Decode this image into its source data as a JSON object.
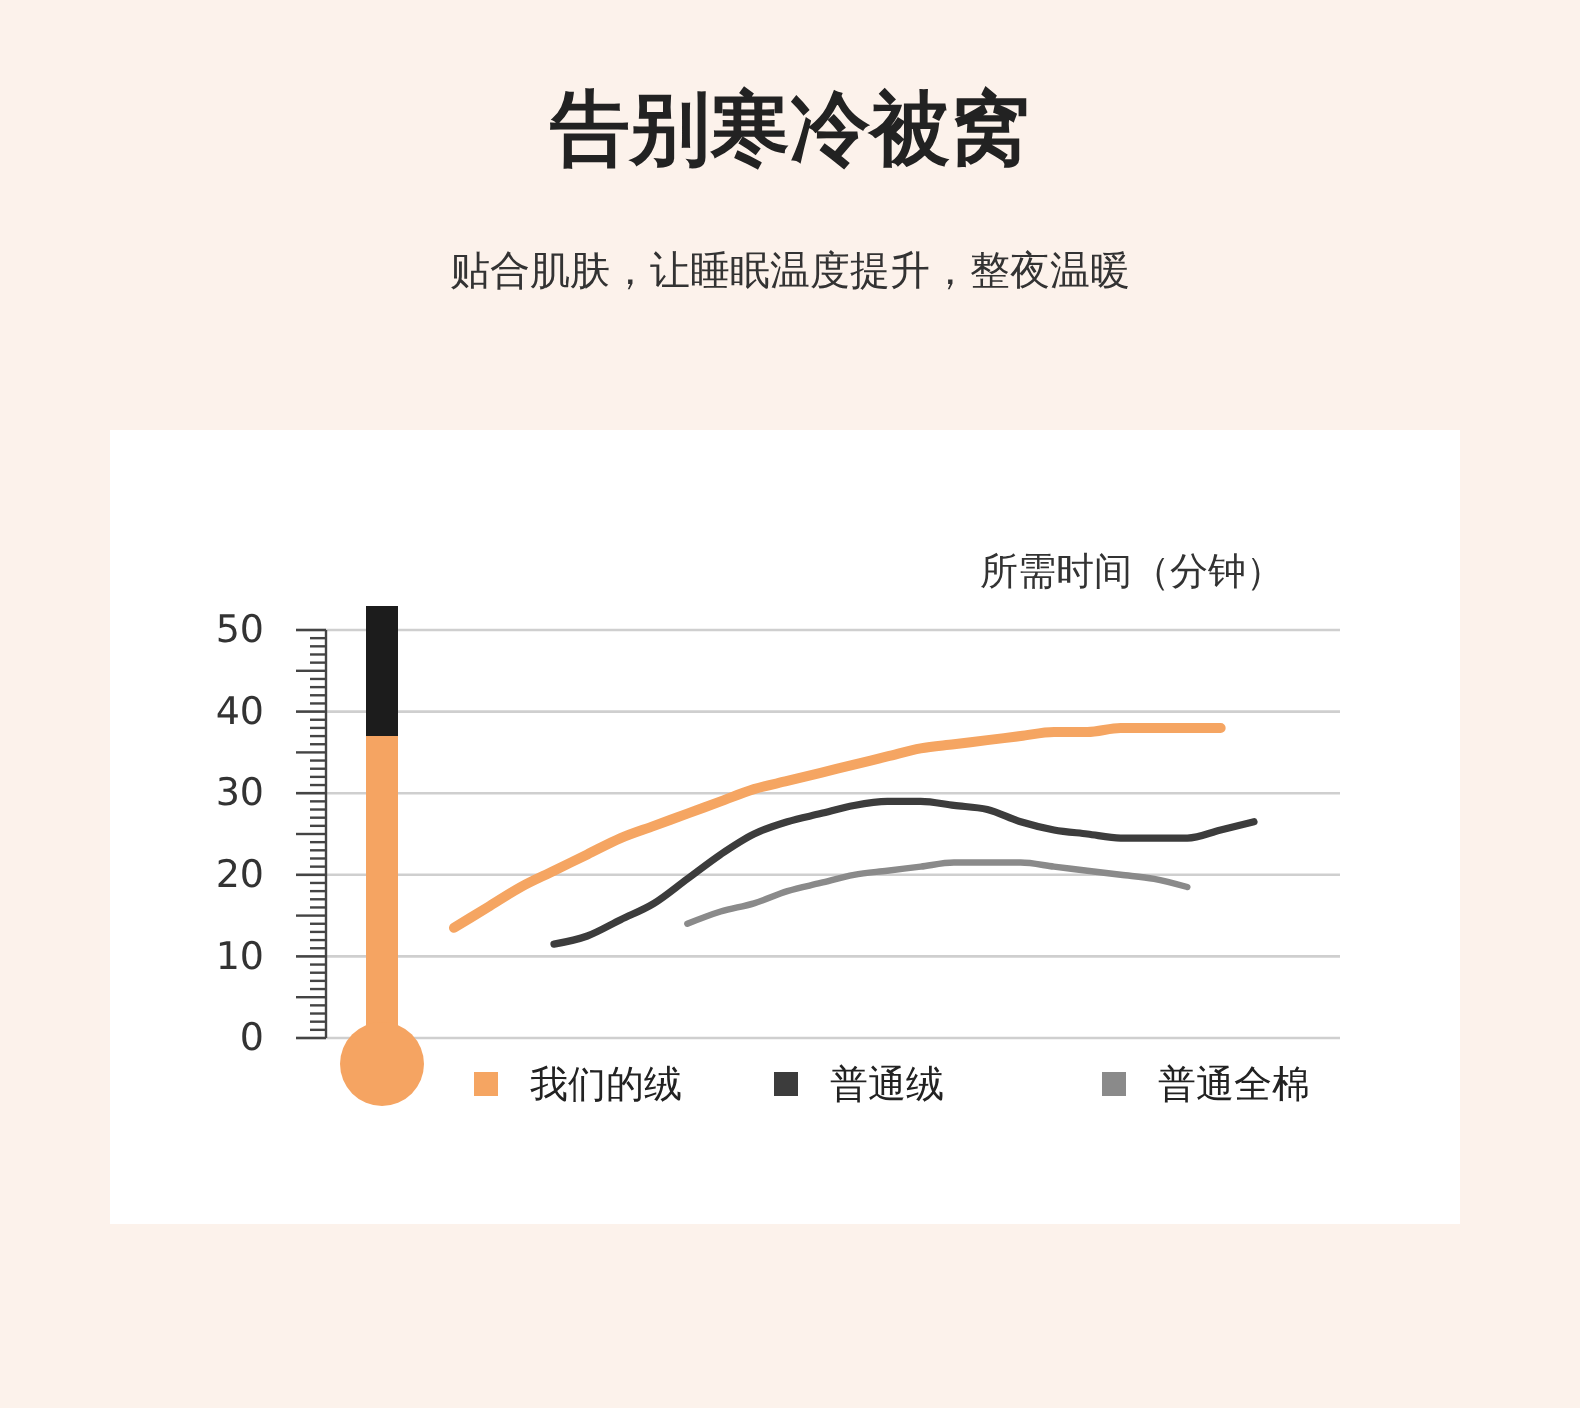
{
  "chart_data": {
    "type": "line",
    "title": "告别寒冷被窝",
    "subtitle": "贴合肌肤，让睡眠温度提升，整夜温暖",
    "ylabel": "所需时间（分钟）",
    "categories": [
      null,
      null,
      null,
      null,
      null,
      null,
      null,
      null,
      null,
      null,
      null,
      null,
      null,
      null,
      null,
      null,
      null,
      null,
      null,
      null,
      null,
      null,
      null,
      null,
      null
    ],
    "series": [
      {
        "name": "我们的绒",
        "color": "#f5a562",
        "values": [
          13.5,
          16,
          18.5,
          20.5,
          22.5,
          24.5,
          26,
          27.5,
          29,
          30.5,
          31.5,
          32.5,
          33.5,
          34.5,
          35.5,
          36,
          36.5,
          37,
          37.5,
          37.5,
          38,
          38,
          38,
          38,
          null
        ]
      },
      {
        "name": "普通绒",
        "color": "#3c3c3c",
        "values": [
          null,
          null,
          null,
          11.5,
          12.5,
          14.5,
          16.5,
          19.5,
          22.5,
          25,
          26.5,
          27.5,
          28.5,
          29,
          29,
          28.5,
          28,
          26.5,
          25.5,
          25,
          24.5,
          24.5,
          24.5,
          25.5,
          26.5
        ]
      },
      {
        "name": "普通全棉",
        "color": "#8a8a8a",
        "values": [
          null,
          null,
          null,
          null,
          null,
          null,
          null,
          14,
          15.5,
          16.5,
          18,
          19,
          20,
          20.5,
          21,
          21.5,
          21.5,
          21.5,
          21,
          20.5,
          20,
          19.5,
          18.5,
          null,
          null
        ]
      }
    ],
    "ylim": [
      0,
      50
    ],
    "yticks": [
      0,
      10,
      20,
      30,
      40,
      50
    ],
    "grid": "y",
    "legend": "bottom"
  }
}
